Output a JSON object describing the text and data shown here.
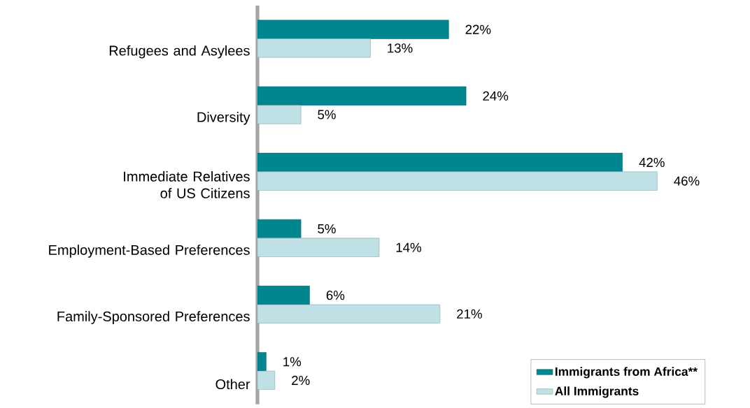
{
  "chart_data": {
    "type": "bar",
    "orientation": "horizontal",
    "categories": [
      "Refugees and Asylees",
      "Diversity",
      "Immediate Relatives of US Citizens",
      "Employment-Based Preferences",
      "Family-Sponsored Preferences",
      "Other"
    ],
    "series": [
      {
        "name": "Immigrants from Africa**",
        "color": "#00868f",
        "values": [
          22,
          24,
          42,
          5,
          6,
          1
        ],
        "value_labels": [
          "22%",
          "24%",
          "42%",
          "5%",
          "6%",
          "1%"
        ]
      },
      {
        "name": "All Immigrants",
        "color": "#bfe1e6",
        "values": [
          13,
          5,
          46,
          14,
          21,
          2
        ],
        "value_labels": [
          "13%",
          "5%",
          "46%",
          "14%",
          "21%",
          "2%"
        ]
      }
    ],
    "legend": "bottom right"
  }
}
